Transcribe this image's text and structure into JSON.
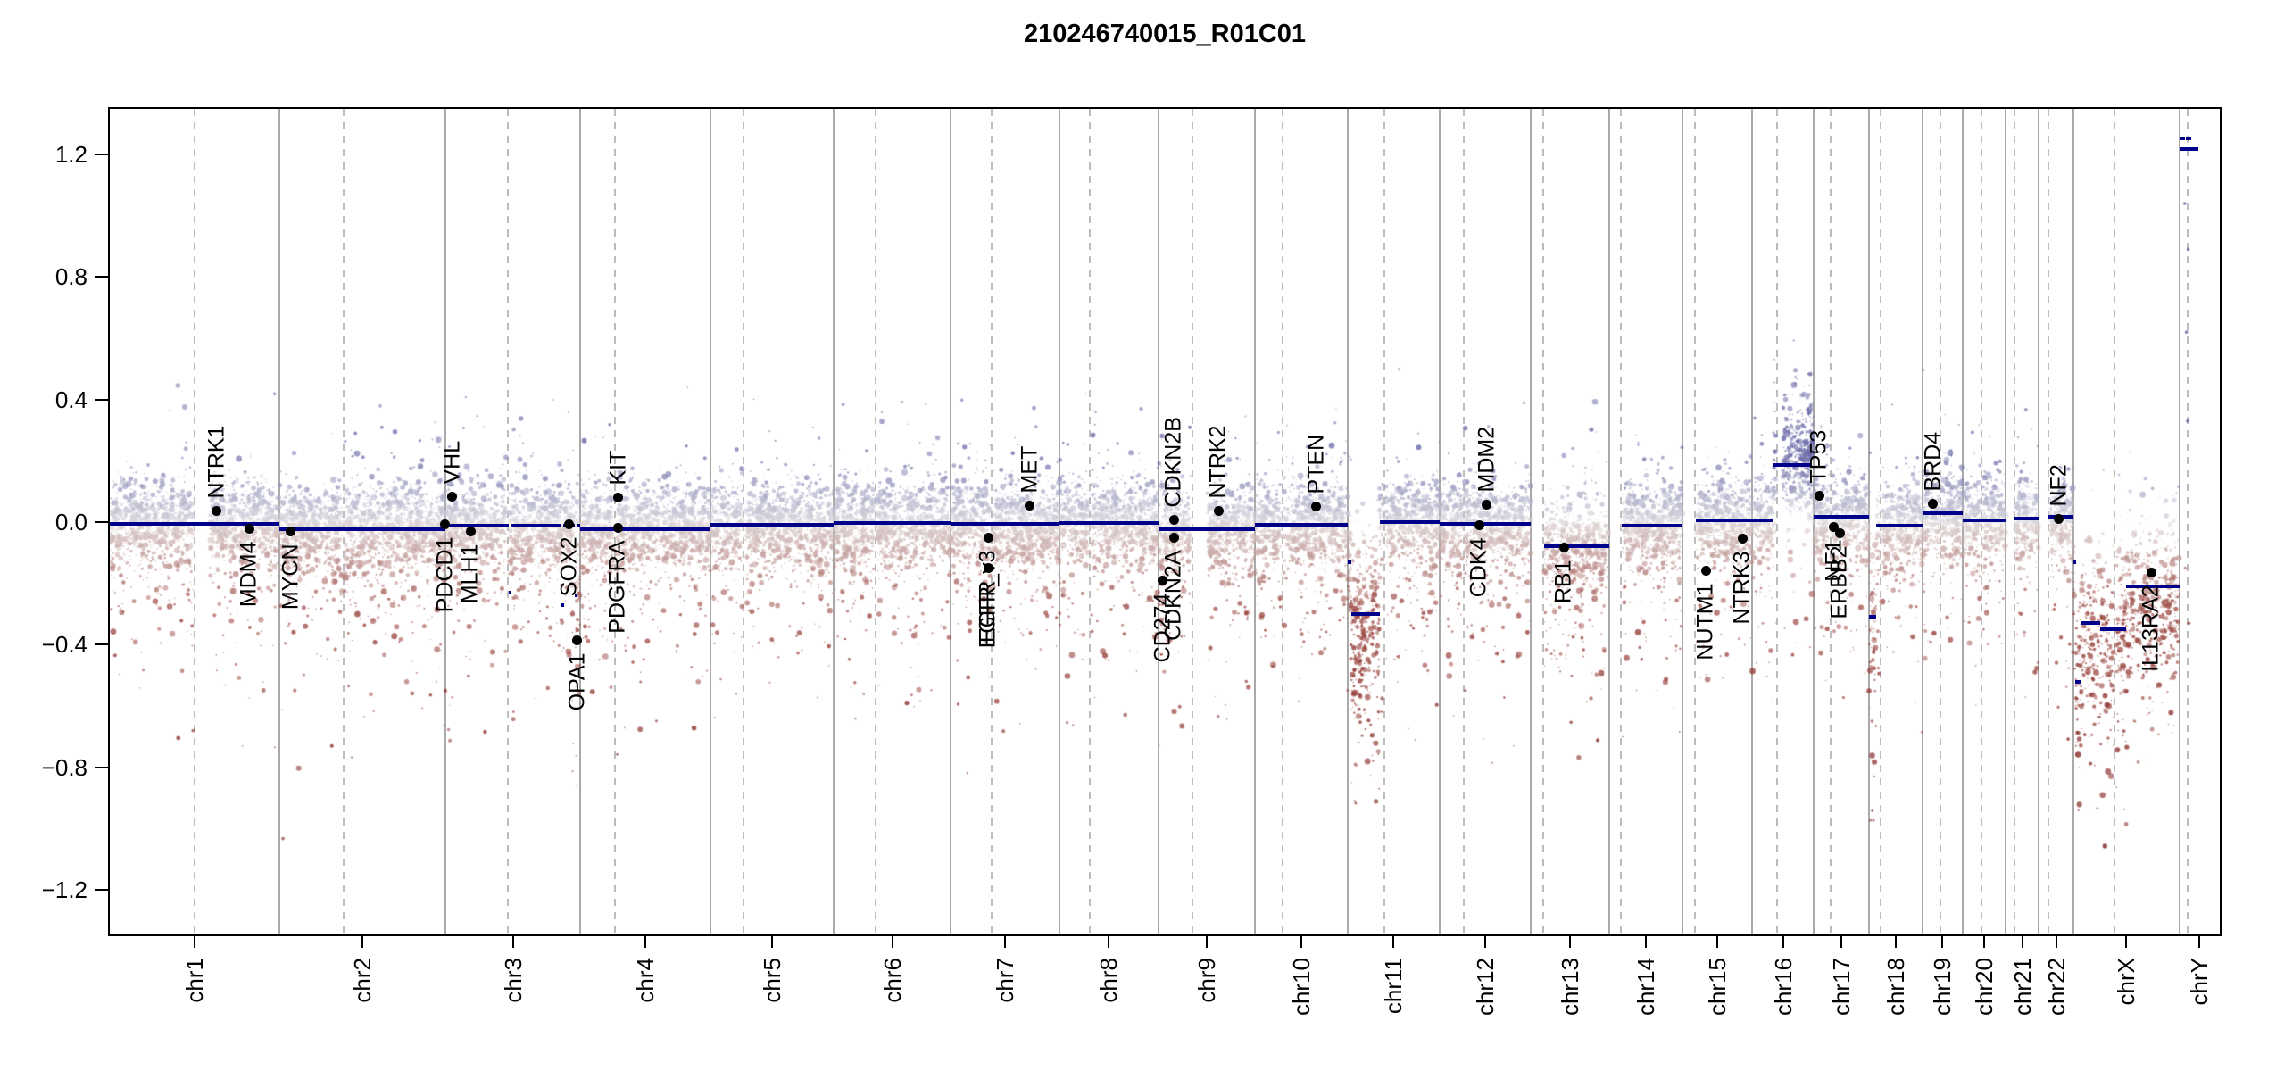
{
  "title": "210246740015_R01C01",
  "chart_data": {
    "type": "scatter",
    "title": "210246740015_R01C01",
    "subtitle": "",
    "xlabel": "",
    "ylabel": "",
    "ylim": [
      -1.35,
      1.35
    ],
    "grid": "chromosome boundaries solid, centromeres dashed",
    "legend": "none",
    "yticks": [
      1.2,
      0.8,
      0.4,
      0.0,
      -0.4,
      -0.8,
      -1.2
    ],
    "ytick_labels": [
      "1.2",
      "0.8",
      "0.4",
      "0.0",
      "−0.4",
      "−0.8",
      "−1.2"
    ],
    "chromosomes": [
      {
        "label": "chr1",
        "length_mb": 249.25,
        "centromere_mb": 125.0
      },
      {
        "label": "chr2",
        "length_mb": 243.2,
        "centromere_mb": 93.3
      },
      {
        "label": "chr3",
        "length_mb": 198.02,
        "centromere_mb": 91.0
      },
      {
        "label": "chr4",
        "length_mb": 191.15,
        "centromere_mb": 50.4
      },
      {
        "label": "chr5",
        "length_mb": 180.92,
        "centromere_mb": 48.4
      },
      {
        "label": "chr6",
        "length_mb": 171.12,
        "centromere_mb": 61.0
      },
      {
        "label": "chr7",
        "length_mb": 159.14,
        "centromere_mb": 59.9
      },
      {
        "label": "chr8",
        "length_mb": 146.36,
        "centromere_mb": 45.6
      },
      {
        "label": "chr9",
        "length_mb": 141.21,
        "centromere_mb": 49.0
      },
      {
        "label": "chr10",
        "length_mb": 135.53,
        "centromere_mb": 40.2
      },
      {
        "label": "chr11",
        "length_mb": 135.01,
        "centromere_mb": 53.7
      },
      {
        "label": "chr12",
        "length_mb": 133.85,
        "centromere_mb": 35.8
      },
      {
        "label": "chr13",
        "length_mb": 115.17,
        "centromere_mb": 17.9
      },
      {
        "label": "chr14",
        "length_mb": 107.35,
        "centromere_mb": 17.6
      },
      {
        "label": "chr15",
        "length_mb": 102.53,
        "centromere_mb": 19.0
      },
      {
        "label": "chr16",
        "length_mb": 90.35,
        "centromere_mb": 36.6
      },
      {
        "label": "chr17",
        "length_mb": 81.2,
        "centromere_mb": 24.0
      },
      {
        "label": "chr18",
        "length_mb": 78.08,
        "centromere_mb": 17.2
      },
      {
        "label": "chr19",
        "length_mb": 59.13,
        "centromere_mb": 26.5
      },
      {
        "label": "chr20",
        "length_mb": 63.03,
        "centromere_mb": 27.5
      },
      {
        "label": "chr21",
        "length_mb": 48.13,
        "centromere_mb": 13.2
      },
      {
        "label": "chr22",
        "length_mb": 51.3,
        "centromere_mb": 14.7
      },
      {
        "label": "chrX",
        "length_mb": 155.27,
        "centromere_mb": 60.6
      },
      {
        "label": "chrY",
        "length_mb": 59.37,
        "centromere_mb": 12.5
      }
    ],
    "segments": [
      {
        "chrom": "chr1",
        "start_mb": 0,
        "end_mb": 249.25,
        "value": -0.005
      },
      {
        "chrom": "chr2",
        "start_mb": 0,
        "end_mb": 243.2,
        "value": -0.022
      },
      {
        "chrom": "chr3",
        "start_mb": 0,
        "end_mb": 93,
        "value": -0.012
      },
      {
        "chrom": "chr3",
        "start_mb": 93,
        "end_mb": 96,
        "value": -0.23
      },
      {
        "chrom": "chr3",
        "start_mb": 96,
        "end_mb": 170,
        "value": -0.012
      },
      {
        "chrom": "chr3",
        "start_mb": 170,
        "end_mb": 173,
        "value": -0.27
      },
      {
        "chrom": "chr3",
        "start_mb": 173,
        "end_mb": 190,
        "value": -0.012
      },
      {
        "chrom": "chr3",
        "start_mb": 190,
        "end_mb": 193,
        "value": -0.24
      },
      {
        "chrom": "chr3",
        "start_mb": 193,
        "end_mb": 198.02,
        "value": -0.012
      },
      {
        "chrom": "chr4",
        "start_mb": 0,
        "end_mb": 191.15,
        "value": -0.022
      },
      {
        "chrom": "chr5",
        "start_mb": 0,
        "end_mb": 180.92,
        "value": -0.008
      },
      {
        "chrom": "chr6",
        "start_mb": 0,
        "end_mb": 171.12,
        "value": -0.004
      },
      {
        "chrom": "chr7",
        "start_mb": 0,
        "end_mb": 159.14,
        "value": -0.006
      },
      {
        "chrom": "chr8",
        "start_mb": 0,
        "end_mb": 146.36,
        "value": -0.004
      },
      {
        "chrom": "chr9",
        "start_mb": 0,
        "end_mb": 141.21,
        "value": -0.022
      },
      {
        "chrom": "chr10",
        "start_mb": 0,
        "end_mb": 135.53,
        "value": -0.008
      },
      {
        "chrom": "chr11",
        "start_mb": 0,
        "end_mb": 5,
        "value": -0.13
      },
      {
        "chrom": "chr11",
        "start_mb": 5,
        "end_mb": 47,
        "value": -0.3
      },
      {
        "chrom": "chr11",
        "start_mb": 47,
        "end_mb": 135.01,
        "value": 0.0
      },
      {
        "chrom": "chr12",
        "start_mb": 0,
        "end_mb": 133.85,
        "value": -0.005
      },
      {
        "chrom": "chr13",
        "start_mb": 19,
        "end_mb": 115.17,
        "value": -0.078
      },
      {
        "chrom": "chr14",
        "start_mb": 19,
        "end_mb": 107.35,
        "value": -0.012
      },
      {
        "chrom": "chr15",
        "start_mb": 19.5,
        "end_mb": 102.53,
        "value": 0.005
      },
      {
        "chrom": "chr16",
        "start_mb": 0,
        "end_mb": 31,
        "value": 0.005
      },
      {
        "chrom": "chr16",
        "start_mb": 31,
        "end_mb": 88,
        "value": 0.185
      },
      {
        "chrom": "chr17",
        "start_mb": 0,
        "end_mb": 81.2,
        "value": 0.017
      },
      {
        "chrom": "chr18",
        "start_mb": 0,
        "end_mb": 10,
        "value": -0.31
      },
      {
        "chrom": "chr18",
        "start_mb": 10,
        "end_mb": 78.08,
        "value": -0.012
      },
      {
        "chrom": "chr19",
        "start_mb": 0,
        "end_mb": 59.13,
        "value": 0.028
      },
      {
        "chrom": "chr20",
        "start_mb": 0,
        "end_mb": 63.03,
        "value": 0.006
      },
      {
        "chrom": "chr21",
        "start_mb": 12,
        "end_mb": 48.13,
        "value": 0.012
      },
      {
        "chrom": "chr22",
        "start_mb": 13,
        "end_mb": 51.3,
        "value": 0.017
      },
      {
        "chrom": "chrX",
        "start_mb": 0,
        "end_mb": 2,
        "value": -0.13
      },
      {
        "chrom": "chrX",
        "start_mb": 2,
        "end_mb": 12,
        "value": -0.52
      },
      {
        "chrom": "chrX",
        "start_mb": 12,
        "end_mb": 39,
        "value": -0.33
      },
      {
        "chrom": "chrX",
        "start_mb": 39,
        "end_mb": 77,
        "value": -0.35
      },
      {
        "chrom": "chrX",
        "start_mb": 77,
        "end_mb": 155.27,
        "value": -0.21
      },
      {
        "chrom": "chrY",
        "start_mb": 0,
        "end_mb": 8,
        "value": 1.25,
        "style": "thin"
      },
      {
        "chrom": "chrY",
        "start_mb": 10,
        "end_mb": 18,
        "value": 1.25,
        "style": "thin"
      },
      {
        "chrom": "chrY",
        "start_mb": 1,
        "end_mb": 28,
        "value": 1.218
      }
    ],
    "genes": [
      {
        "name": "NTRK1",
        "chrom": "chr1",
        "mb": 156.8,
        "value": 0.035,
        "side": "above"
      },
      {
        "name": "MDM4",
        "chrom": "chr1",
        "mb": 204.5,
        "value": -0.023,
        "side": "below"
      },
      {
        "name": "MYCN",
        "chrom": "chr2",
        "mb": 16.1,
        "value": -0.032,
        "side": "below"
      },
      {
        "name": "PDCD1",
        "chrom": "chr2",
        "mb": 242.5,
        "value": -0.006,
        "side": "below"
      },
      {
        "name": "VHL",
        "chrom": "chr3",
        "mb": 10.2,
        "value": 0.082,
        "side": "above"
      },
      {
        "name": "MLH1",
        "chrom": "chr3",
        "mb": 37.0,
        "value": -0.032,
        "side": "below"
      },
      {
        "name": "SOX2",
        "chrom": "chr3",
        "mb": 181.4,
        "value": -0.006,
        "side": "below"
      },
      {
        "name": "OPA1",
        "chrom": "chr3",
        "mb": 193.3,
        "value": -0.385,
        "side": "below"
      },
      {
        "name": "PDGFRA",
        "chrom": "chr4",
        "mb": 55.1,
        "value": -0.02,
        "side": "below"
      },
      {
        "name": "KIT",
        "chrom": "chr4",
        "mb": 55.5,
        "value": 0.079,
        "side": "above"
      },
      {
        "name": "EGFR_v3",
        "chrom": "chr7",
        "mb": 55.0,
        "value": -0.052,
        "side": "below"
      },
      {
        "name": "EGFR",
        "chrom": "chr7",
        "mb": 55.3,
        "value": -0.151,
        "side": "below"
      },
      {
        "name": "MET",
        "chrom": "chr7",
        "mb": 116.3,
        "value": 0.055,
        "side": "above"
      },
      {
        "name": "CD274",
        "chrom": "chr9",
        "mb": 5.45,
        "value": -0.19,
        "side": "below"
      },
      {
        "name": "CDKN2A",
        "chrom": "chr9",
        "mb": 21.97,
        "value": -0.052,
        "side": "below"
      },
      {
        "name": "CDKN2B",
        "chrom": "chr9",
        "mb": 22.0,
        "value": 0.008,
        "side": "above"
      },
      {
        "name": "NTRK2",
        "chrom": "chr9",
        "mb": 87.3,
        "value": 0.035,
        "side": "above"
      },
      {
        "name": "PTEN",
        "chrom": "chr10",
        "mb": 89.7,
        "value": 0.052,
        "side": "above"
      },
      {
        "name": "CDK4",
        "chrom": "chr12",
        "mb": 58.1,
        "value": -0.009,
        "side": "below"
      },
      {
        "name": "MDM2",
        "chrom": "chr12",
        "mb": 69.2,
        "value": 0.058,
        "side": "above"
      },
      {
        "name": "RB1",
        "chrom": "chr13",
        "mb": 48.9,
        "value": -0.082,
        "side": "below"
      },
      {
        "name": "NUTM1",
        "chrom": "chr15",
        "mb": 34.6,
        "value": -0.16,
        "side": "below"
      },
      {
        "name": "NTRK3",
        "chrom": "chr15",
        "mb": 88.4,
        "value": -0.055,
        "side": "below"
      },
      {
        "name": "TP53",
        "chrom": "chr17",
        "mb": 7.57,
        "value": 0.085,
        "side": "above"
      },
      {
        "name": "NF1",
        "chrom": "chr17",
        "mb": 29.4,
        "value": -0.015,
        "side": "below"
      },
      {
        "name": "ERBB2",
        "chrom": "chr17",
        "mb": 37.85,
        "value": -0.035,
        "side": "below"
      },
      {
        "name": "BRD4",
        "chrom": "chr19",
        "mb": 15.35,
        "value": 0.061,
        "side": "above"
      },
      {
        "name": "NF2",
        "chrom": "chr22",
        "mb": 30.0,
        "value": 0.01,
        "side": "above"
      },
      {
        "name": "IL13RA2",
        "chrom": "chrX",
        "mb": 114.2,
        "value": -0.166,
        "side": "below"
      }
    ],
    "scatter_model": {
      "defaults": {
        "sd": 0.068,
        "density_per_mb": 8,
        "tail_down": 0.1,
        "tail_up": 0.03
      },
      "regions": [
        {
          "chrom": "chr1",
          "s": 0,
          "e": 249.25,
          "mean": -0.005
        },
        {
          "chrom": "chr2",
          "s": 0,
          "e": 243.2,
          "mean": -0.022
        },
        {
          "chrom": "chr3",
          "s": 0,
          "e": 186,
          "mean": -0.012
        },
        {
          "chrom": "chr3",
          "s": 186,
          "e": 198.02,
          "mean": -0.12,
          "sd": 0.17,
          "density_per_mb": 6,
          "tail_down": 0.3
        },
        {
          "chrom": "chr4",
          "s": 0,
          "e": 191.15,
          "mean": -0.022
        },
        {
          "chrom": "chr5",
          "s": 0,
          "e": 180.92,
          "mean": -0.008
        },
        {
          "chrom": "chr6",
          "s": 0,
          "e": 171.12,
          "mean": -0.004
        },
        {
          "chrom": "chr7",
          "s": 0,
          "e": 159.14,
          "mean": -0.006
        },
        {
          "chrom": "chr8",
          "s": 0,
          "e": 146.36,
          "mean": -0.004
        },
        {
          "chrom": "chr9",
          "s": 0,
          "e": 8,
          "mean": -0.08,
          "sd": 0.11,
          "tail_down": 0.2
        },
        {
          "chrom": "chr9",
          "s": 8,
          "e": 141.21,
          "mean": -0.022
        },
        {
          "chrom": "chr10",
          "s": 0,
          "e": 135.53,
          "mean": -0.008
        },
        {
          "chrom": "chr11",
          "s": 0,
          "e": 5,
          "mean": -0.12,
          "sd": 0.1
        },
        {
          "chrom": "chr11",
          "s": 5,
          "e": 47,
          "mean": -0.3,
          "sd": 0.14,
          "tail_down": 0.25
        },
        {
          "chrom": "chr11",
          "s": 47,
          "e": 135.01,
          "mean": 0.0
        },
        {
          "chrom": "chr12",
          "s": 0,
          "e": 133.85,
          "mean": -0.005
        },
        {
          "chrom": "chr13",
          "s": 19,
          "e": 115.17,
          "mean": -0.075,
          "tail_down": 0.14
        },
        {
          "chrom": "chr14",
          "s": 19,
          "e": 107.35,
          "mean": -0.012
        },
        {
          "chrom": "chr15",
          "s": 19.5,
          "e": 102.53,
          "mean": 0.0
        },
        {
          "chrom": "chr16",
          "s": 0,
          "e": 31,
          "mean": 0.005
        },
        {
          "chrom": "chr16",
          "s": 31,
          "e": 90.35,
          "mean": 0.19,
          "sd": 0.105,
          "density_per_mb": 9,
          "tail_up": 0.1,
          "tail_down": 0.05
        },
        {
          "chrom": "chr17",
          "s": 0,
          "e": 81.2,
          "mean": 0.015
        },
        {
          "chrom": "chr18",
          "s": 0,
          "e": 10,
          "mean": -0.3,
          "sd": 0.13,
          "density_per_mb": 6.5,
          "tail_down": 0.22
        },
        {
          "chrom": "chr18",
          "s": 10,
          "e": 78.08,
          "mean": -0.012
        },
        {
          "chrom": "chr19",
          "s": 0,
          "e": 59.13,
          "mean": 0.026
        },
        {
          "chrom": "chr20",
          "s": 0,
          "e": 63.03,
          "mean": 0.006
        },
        {
          "chrom": "chr21",
          "s": 12,
          "e": 48.13,
          "mean": 0.012
        },
        {
          "chrom": "chr22",
          "s": 13,
          "e": 51.3,
          "mean": 0.015
        },
        {
          "chrom": "chrX",
          "s": 0,
          "e": 2,
          "mean": -0.13,
          "sd": 0.1
        },
        {
          "chrom": "chrX",
          "s": 2,
          "e": 12,
          "mean": -0.48,
          "sd": 0.14,
          "density_per_mb": 6,
          "tail_down": 0.2
        },
        {
          "chrom": "chrX",
          "s": 12,
          "e": 77,
          "mean": -0.33,
          "sd": 0.14,
          "density_per_mb": 6,
          "tail_down": 0.22
        },
        {
          "chrom": "chrX",
          "s": 77,
          "e": 155.27,
          "mean": -0.21,
          "sd": 0.13,
          "density_per_mb": 6,
          "tail_down": 0.2
        }
      ],
      "exclusions": [
        {
          "chrom": "chr1",
          "s": 125,
          "e": 147
        },
        {
          "chrom": "chr9",
          "s": 47,
          "e": 71
        },
        {
          "chrom": "chr16",
          "s": 36,
          "e": 45
        }
      ],
      "extra_points": [
        {
          "chrom": "chrY",
          "mb": 8,
          "value": 1.04
        },
        {
          "chrom": "chrY",
          "mb": 13,
          "value": 0.89
        },
        {
          "chrom": "chrY",
          "mb": 10.5,
          "value": 0.62
        },
        {
          "chrom": "chrY",
          "mb": 12,
          "value": 0.33
        },
        {
          "chrom": "chrY",
          "mb": 9,
          "value": -0.15
        },
        {
          "chrom": "chrY",
          "mb": 14,
          "value": -0.33
        }
      ]
    },
    "colors": {
      "segment": "#00008b",
      "gain_point": "#6767a7",
      "loss_point": "#96423a",
      "neutral_point": "#d9d9de",
      "boundary_line": "#a9a9a9",
      "centromere_line": "#bdbdbd",
      "gene_dot": "#000000"
    }
  }
}
